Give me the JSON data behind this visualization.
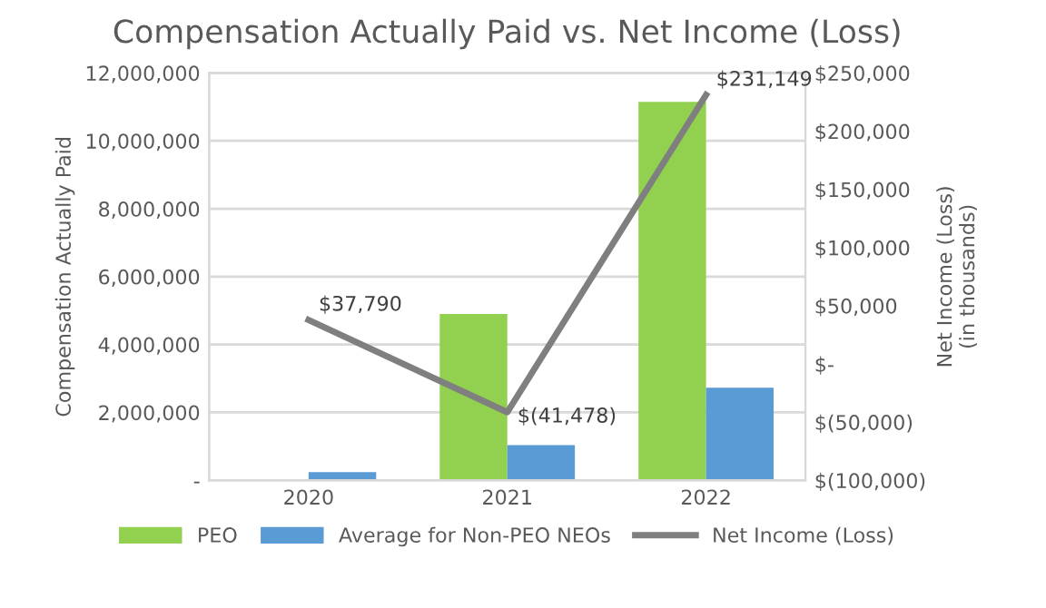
{
  "chart_data": {
    "type": "bar",
    "title": "Compensation Actually Paid vs. Net Income (Loss)",
    "ylabel": "Compensation Actually Paid",
    "y2label": "Net Income (Loss)\n(in thousands)",
    "categories": [
      "2020",
      "2021",
      "2022"
    ],
    "series": [
      {
        "name": "PEO",
        "color": "#92d050",
        "values": [
          0,
          4900000,
          11150000
        ]
      },
      {
        "name": "Average for Non-PEO NEOs",
        "color": "#5b9bd5",
        "values": [
          240000,
          1040000,
          2730000
        ]
      },
      {
        "name": "Net Income (Loss)",
        "type": "line",
        "axis": "y2",
        "color": "#7f7f7f",
        "values": [
          37790,
          -41478,
          231149
        ],
        "value_labels": [
          "$37,790",
          "$(41,478)",
          "$231,149"
        ]
      }
    ],
    "ylim": [
      0,
      12000000
    ],
    "yticks": [
      {
        "value": 0,
        "label": "-"
      },
      {
        "value": 2000000,
        "label": "2,000,000"
      },
      {
        "value": 4000000,
        "label": "4,000,000"
      },
      {
        "value": 6000000,
        "label": "6,000,000"
      },
      {
        "value": 8000000,
        "label": "8,000,000"
      },
      {
        "value": 10000000,
        "label": "10,000,000"
      },
      {
        "value": 12000000,
        "label": "12,000,000"
      }
    ],
    "y2lim": [
      -100000,
      250000
    ],
    "y2ticks": [
      {
        "value": -100000,
        "label": "$(100,000)"
      },
      {
        "value": -50000,
        "label": "$(50,000)"
      },
      {
        "value": 0,
        "label": "$-"
      },
      {
        "value": 50000,
        "label": "$50,000"
      },
      {
        "value": 100000,
        "label": "$100,000"
      },
      {
        "value": 150000,
        "label": "$150,000"
      },
      {
        "value": 200000,
        "label": "$200,000"
      },
      {
        "value": 250000,
        "label": "$250,000"
      }
    ],
    "grid": "y",
    "legend": "bottom",
    "marker": "none",
    "line_style": "solid"
  }
}
